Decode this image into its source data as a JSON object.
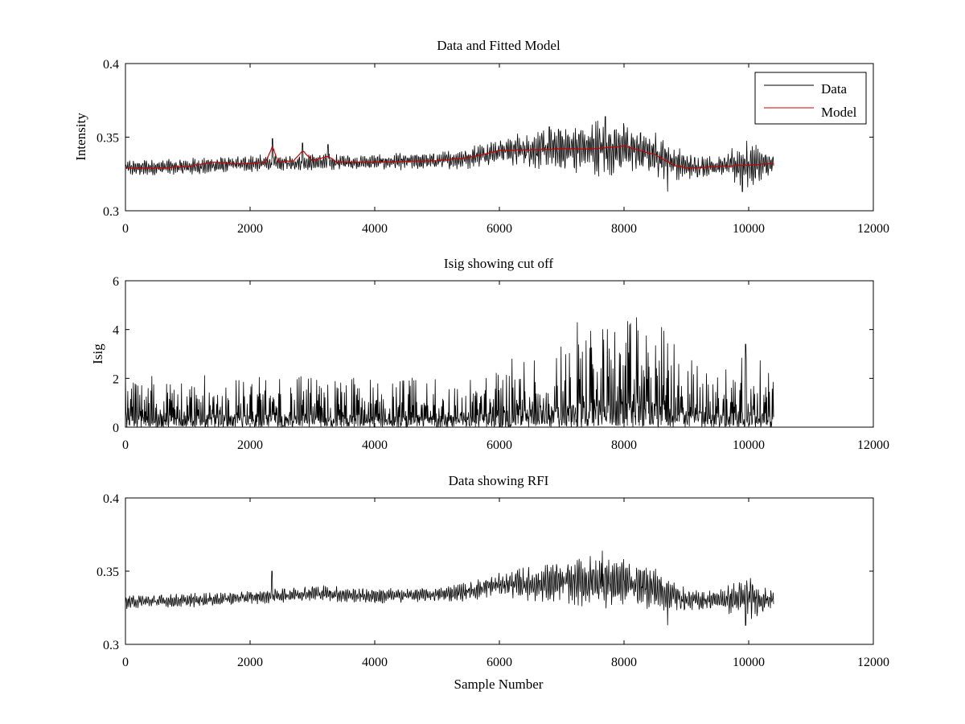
{
  "figure": {
    "background": "#ffffff"
  },
  "chart_data": [
    {
      "type": "line",
      "title": "Data and Fitted Model",
      "xlabel": "",
      "ylabel": "Intensity",
      "xlim": [
        0,
        12000
      ],
      "ylim": [
        0.3,
        0.4
      ],
      "xticks": [
        0,
        2000,
        4000,
        6000,
        8000,
        10000,
        12000
      ],
      "xtick_labels": [
        "0",
        "2000",
        "4000",
        "6000",
        "8000",
        "10000",
        "12000"
      ],
      "yticks": [
        0.3,
        0.35,
        0.4
      ],
      "ytick_labels": [
        "0.3",
        "0.35",
        "0.4"
      ],
      "grid": false,
      "legend": "top-right",
      "series": [
        {
          "name": "Data",
          "color": "#000000",
          "x_range": [
            0,
            10400
          ],
          "baseline": [
            [
              0,
              0.329
            ],
            [
              1000,
              0.33
            ],
            [
              2000,
              0.332
            ],
            [
              3000,
              0.333
            ],
            [
              4000,
              0.333
            ],
            [
              5000,
              0.334
            ],
            [
              5500,
              0.336
            ],
            [
              6000,
              0.341
            ],
            [
              7000,
              0.342
            ],
            [
              8000,
              0.343
            ],
            [
              8500,
              0.338
            ],
            [
              9000,
              0.33
            ],
            [
              10000,
              0.331
            ],
            [
              10400,
              0.331
            ]
          ],
          "envelope": [
            [
              0,
              0.006
            ],
            [
              2000,
              0.006
            ],
            [
              3000,
              0.006
            ],
            [
              5000,
              0.006
            ],
            [
              5800,
              0.009
            ],
            [
              6500,
              0.013
            ],
            [
              7500,
              0.02
            ],
            [
              8000,
              0.019
            ],
            [
              8500,
              0.016
            ],
            [
              9000,
              0.01
            ],
            [
              9500,
              0.007
            ],
            [
              10000,
              0.018
            ],
            [
              10400,
              0.008
            ]
          ],
          "peaks": [
            [
              2360,
              0.349
            ],
            [
              2840,
              0.346
            ],
            [
              3250,
              0.345
            ],
            [
              6800,
              0.357
            ],
            [
              7700,
              0.364
            ],
            [
              8700,
              0.313
            ],
            [
              9900,
              0.313
            ]
          ]
        },
        {
          "name": "Model",
          "color": "#cc0000",
          "points": [
            [
              0,
              0.329
            ],
            [
              500,
              0.329
            ],
            [
              1000,
              0.33
            ],
            [
              1400,
              0.333
            ],
            [
              1700,
              0.332
            ],
            [
              2000,
              0.332
            ],
            [
              2250,
              0.333
            ],
            [
              2360,
              0.344
            ],
            [
              2450,
              0.333
            ],
            [
              2700,
              0.334
            ],
            [
              2840,
              0.341
            ],
            [
              3000,
              0.334
            ],
            [
              3250,
              0.337
            ],
            [
              3400,
              0.333
            ],
            [
              4000,
              0.333
            ],
            [
              5000,
              0.334
            ],
            [
              5500,
              0.336
            ],
            [
              6000,
              0.341
            ],
            [
              7000,
              0.342
            ],
            [
              7500,
              0.342
            ],
            [
              8000,
              0.344
            ],
            [
              8500,
              0.338
            ],
            [
              8800,
              0.331
            ],
            [
              9000,
              0.329
            ],
            [
              10000,
              0.331
            ],
            [
              10400,
              0.332
            ]
          ]
        }
      ]
    },
    {
      "type": "line",
      "title": "Isig showing cut off",
      "xlabel": "",
      "ylabel": "Isig",
      "xlim": [
        0,
        12000
      ],
      "ylim": [
        0,
        6
      ],
      "xticks": [
        0,
        2000,
        4000,
        6000,
        8000,
        10000,
        12000
      ],
      "xtick_labels": [
        "0",
        "2000",
        "4000",
        "6000",
        "8000",
        "10000",
        "12000"
      ],
      "yticks": [
        0,
        2,
        4,
        6
      ],
      "ytick_labels": [
        "0",
        "2",
        "4",
        "6"
      ],
      "grid": false,
      "series": [
        {
          "name": "",
          "color": "#000000",
          "x_range": [
            0,
            10400
          ],
          "max_envelope": [
            [
              0,
              2.2
            ],
            [
              2000,
              2.1
            ],
            [
              4000,
              2.1
            ],
            [
              5500,
              2.0
            ],
            [
              6000,
              2.5
            ],
            [
              6500,
              3.3
            ],
            [
              7200,
              3.8
            ],
            [
              7500,
              4.3
            ],
            [
              8200,
              4.5
            ],
            [
              8600,
              4.1
            ],
            [
              9000,
              3.0
            ],
            [
              9500,
              2.3
            ],
            [
              10000,
              3.4
            ],
            [
              10400,
              2.0
            ]
          ],
          "peaks": [
            [
              0,
              2.2
            ],
            [
              7250,
              4.3
            ],
            [
              8200,
              4.5
            ],
            [
              8600,
              4.1
            ],
            [
              9950,
              3.4
            ]
          ]
        }
      ]
    },
    {
      "type": "line",
      "title": "Data showing RFI",
      "xlabel": "Sample Number",
      "ylabel": "",
      "xlim": [
        0,
        12000
      ],
      "ylim": [
        0.3,
        0.4
      ],
      "xticks": [
        0,
        2000,
        4000,
        6000,
        8000,
        10000,
        12000
      ],
      "xtick_labels": [
        "0",
        "2000",
        "4000",
        "6000",
        "8000",
        "10000",
        "12000"
      ],
      "yticks": [
        0.3,
        0.35,
        0.4
      ],
      "ytick_labels": [
        "0.3",
        "0.35",
        "0.4"
      ],
      "grid": false,
      "series": [
        {
          "name": "",
          "color": "#000000",
          "x_range": [
            0,
            10400
          ],
          "baseline": [
            [
              0,
              0.329
            ],
            [
              1000,
              0.33
            ],
            [
              2000,
              0.332
            ],
            [
              3000,
              0.335
            ],
            [
              4000,
              0.333
            ],
            [
              5000,
              0.334
            ],
            [
              5500,
              0.336
            ],
            [
              6000,
              0.341
            ],
            [
              7000,
              0.342
            ],
            [
              8000,
              0.343
            ],
            [
              8500,
              0.338
            ],
            [
              9000,
              0.33
            ],
            [
              10000,
              0.331
            ],
            [
              10400,
              0.331
            ]
          ],
          "envelope": [
            [
              0,
              0.005
            ],
            [
              2000,
              0.005
            ],
            [
              3000,
              0.006
            ],
            [
              5000,
              0.005
            ],
            [
              5800,
              0.008
            ],
            [
              6500,
              0.012
            ],
            [
              7500,
              0.019
            ],
            [
              8000,
              0.018
            ],
            [
              8500,
              0.015
            ],
            [
              9000,
              0.009
            ],
            [
              9500,
              0.007
            ],
            [
              10000,
              0.016
            ],
            [
              10400,
              0.007
            ]
          ],
          "peaks": [
            [
              2350,
              0.35
            ],
            [
              7650,
              0.364
            ],
            [
              8700,
              0.313
            ],
            [
              9950,
              0.313
            ]
          ]
        }
      ]
    }
  ]
}
